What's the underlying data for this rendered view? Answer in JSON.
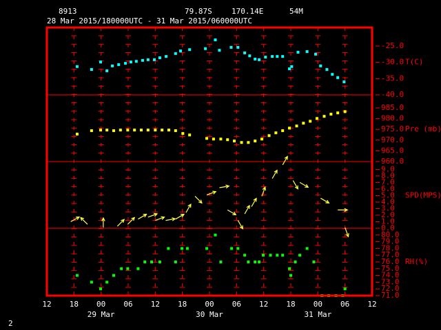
{
  "chart_data": {
    "type": "meteogram",
    "station": "8913",
    "latitude": "79.87S",
    "longitude": "170.14E",
    "elevation": "54M",
    "period": "28 Mar 2015/180000UTC - 31 Mar 2015/060000UTC",
    "footer": "2",
    "xlim": [
      0,
      72
    ],
    "xticks": [
      {
        "value": 0,
        "label": "12"
      },
      {
        "value": 6,
        "label": "18"
      },
      {
        "value": 12,
        "label": "00"
      },
      {
        "value": 18,
        "label": "06"
      },
      {
        "value": 24,
        "label": "12"
      },
      {
        "value": 30,
        "label": "18"
      },
      {
        "value": 36,
        "label": "00"
      },
      {
        "value": 42,
        "label": "06"
      },
      {
        "value": 48,
        "label": "12"
      },
      {
        "value": 54,
        "label": "18"
      },
      {
        "value": 60,
        "label": "00"
      },
      {
        "value": 66,
        "label": "06"
      },
      {
        "value": 72,
        "label": "12"
      }
    ],
    "date_labels": [
      {
        "value": 12,
        "label": "29 Mar"
      },
      {
        "value": 36,
        "label": "30 Mar"
      },
      {
        "value": 60,
        "label": "31 Mar"
      }
    ],
    "panels": [
      {
        "type": "scatter",
        "label": "T(C)",
        "color": "#00ffff",
        "ylim": [
          -40,
          -19.3
        ],
        "yticks": [
          {
            "value": -40,
            "label": "-40.0"
          },
          {
            "value": -35,
            "label": "-35.0"
          },
          {
            "value": -30,
            "label": "-30.0"
          },
          {
            "value": -25,
            "label": "-25.0"
          }
        ],
        "x": [
          6.7,
          9.9,
          11.9,
          13.3,
          14.5,
          15.9,
          17.4,
          18.6,
          19.8,
          21.2,
          22.4,
          23.8,
          25.0,
          26.4,
          28.5,
          29.6,
          31.6,
          35.1,
          37.3,
          38.2,
          40.8,
          42.3,
          43.8,
          44.9,
          46.1,
          47.0,
          48.4,
          49.9,
          51.0,
          52.2,
          53.7,
          54.2,
          55.6,
          57.6,
          59.5,
          60.6,
          62.0,
          63.2,
          64.4,
          65.8
        ],
        "values": [
          -31.3,
          -32.2,
          -29.9,
          -32.6,
          -31.1,
          -30.7,
          -30.3,
          -29.9,
          -29.7,
          -29.4,
          -29.2,
          -29.2,
          -28.6,
          -28.2,
          -27.3,
          -26.5,
          -26.1,
          -25.8,
          -23.1,
          -26.3,
          -25.4,
          -25.4,
          -27.1,
          -28.0,
          -29.0,
          -29.2,
          -28.4,
          -28.2,
          -28.2,
          -28.2,
          -32.0,
          -31.3,
          -26.9,
          -26.7,
          -27.5,
          -31.1,
          -32.2,
          -33.7,
          -34.7,
          -36.0
        ]
      },
      {
        "type": "scatter",
        "label": "Pre (mb)",
        "color": "#ffff00",
        "ylim": [
          960,
          991.1
        ],
        "yticks": [
          {
            "value": 960,
            "label": "960.0"
          },
          {
            "value": 965,
            "label": "965.0"
          },
          {
            "value": 970,
            "label": "970.0"
          },
          {
            "value": 975,
            "label": "975.0"
          },
          {
            "value": 980,
            "label": "980.0"
          },
          {
            "value": 985,
            "label": "985.0"
          }
        ],
        "x": [
          6.7,
          9.9,
          11.9,
          13.3,
          14.8,
          16.3,
          17.9,
          19.4,
          20.9,
          22.4,
          24.0,
          25.5,
          27.0,
          28.5,
          30.1,
          31.6,
          35.4,
          36.9,
          38.5,
          40.0,
          41.5,
          43.1,
          44.6,
          46.1,
          47.6,
          49.2,
          50.7,
          52.2,
          53.7,
          55.3,
          56.8,
          58.3,
          59.8,
          61.4,
          62.9,
          64.4,
          66.0
        ],
        "values": [
          972.8,
          974.4,
          974.7,
          974.7,
          974.4,
          974.7,
          974.7,
          974.7,
          974.7,
          974.7,
          974.7,
          974.7,
          974.7,
          974.4,
          973.1,
          972.4,
          970.8,
          970.5,
          970.5,
          970.2,
          969.6,
          968.9,
          968.9,
          969.6,
          970.5,
          972.1,
          973.4,
          974.4,
          975.6,
          976.6,
          977.9,
          978.8,
          980.1,
          981.1,
          982.1,
          982.7,
          983.3
        ]
      },
      {
        "type": "vector",
        "label": "SPD(MPS)",
        "color": "#ffff40",
        "ylim": [
          0,
          10.2
        ],
        "yticks": [
          {
            "value": 0,
            "label": "0.0"
          },
          {
            "value": 1,
            "label": "1.0"
          },
          {
            "value": 2,
            "label": "2.0"
          },
          {
            "value": 3,
            "label": "3.0"
          },
          {
            "value": 4,
            "label": "4.0"
          },
          {
            "value": 5,
            "label": "5.0"
          },
          {
            "value": 6,
            "label": "6.0"
          },
          {
            "value": 7,
            "label": "7.0"
          },
          {
            "value": 8,
            "label": "8.0"
          },
          {
            "value": 9,
            "label": "9.0"
          }
        ],
        "x": [
          5.3,
          9.0,
          12.5,
          15.6,
          17.9,
          20.2,
          22.4,
          24.0,
          26.3,
          28.5,
          30.8,
          32.8,
          35.4,
          38.2,
          40.0,
          42.3,
          43.8,
          45.3,
          47.6,
          49.9,
          52.2,
          54.5,
          56.0,
          60.6,
          64.4,
          66.0
        ],
        "values": [
          1.0,
          0.6,
          0.1,
          0.3,
          0.6,
          1.4,
          1.7,
          1.2,
          1.2,
          1.4,
          2.4,
          4.9,
          5.1,
          6.2,
          2.8,
          1.2,
          2.2,
          3.3,
          4.9,
          7.6,
          9.7,
          7.3,
          7.0,
          4.6,
          2.8,
          0.1
        ],
        "directions": [
          60,
          315,
          0,
          45,
          45,
          60,
          70,
          70,
          80,
          60,
          30,
          135,
          70,
          80,
          120,
          150,
          30,
          30,
          20,
          30,
          30,
          150,
          120,
          120,
          90,
          160
        ]
      },
      {
        "type": "scatter",
        "label": "RH(%)",
        "color": "#00ff00",
        "ylim": [
          71,
          81
        ],
        "yticks": [
          {
            "value": 71,
            "label": "71.0"
          },
          {
            "value": 72,
            "label": "72.0"
          },
          {
            "value": 73,
            "label": "73.0"
          },
          {
            "value": 74,
            "label": "74.0"
          },
          {
            "value": 75,
            "label": "75.0"
          },
          {
            "value": 76,
            "label": "76.0"
          },
          {
            "value": 77,
            "label": "77.0"
          },
          {
            "value": 78,
            "label": "78.0"
          },
          {
            "value": 79,
            "label": "79.0"
          },
          {
            "value": 80,
            "label": "80.0"
          }
        ],
        "x": [
          6.7,
          9.9,
          11.9,
          13.3,
          14.8,
          16.5,
          17.9,
          20.2,
          21.7,
          23.2,
          25.0,
          26.9,
          28.5,
          29.9,
          31.1,
          35.4,
          37.3,
          38.5,
          40.9,
          42.3,
          43.8,
          44.6,
          46.1,
          47.0,
          47.9,
          49.5,
          51.0,
          52.2,
          53.7,
          54.0,
          55.0,
          56.0,
          57.6,
          59.1,
          60.9,
          62.4,
          64.0,
          65.5,
          66.0
        ],
        "values": [
          74,
          73,
          72,
          73,
          74,
          75,
          75,
          75,
          76,
          76,
          76,
          78,
          76,
          78,
          78,
          78,
          80,
          76,
          78,
          78,
          77,
          76,
          76,
          76,
          77,
          77,
          77,
          77,
          75,
          74,
          76,
          77,
          78,
          76,
          71,
          71,
          71,
          71,
          72
        ]
      }
    ]
  }
}
